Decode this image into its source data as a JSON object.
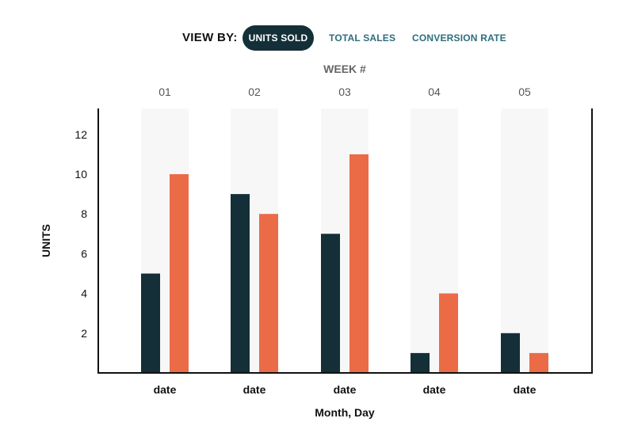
{
  "view_by": {
    "label": "VIEW BY:",
    "options": [
      "UNITS SOLD",
      "TOTAL SALES",
      "CONVERSION RATE"
    ],
    "selected": "UNITS SOLD"
  },
  "colors": {
    "series_dark": "#142f38",
    "series_orange": "#eb6b47",
    "active_pill": "#142f38",
    "link": "#2d6e7e",
    "band": "#f7f7f7"
  },
  "chart_data": {
    "type": "bar",
    "top_axis_label": "WEEK #",
    "top_categories": [
      "01",
      "02",
      "03",
      "04",
      "05"
    ],
    "categories": [
      "date",
      "date",
      "date",
      "date",
      "date"
    ],
    "series": [
      {
        "values": [
          5,
          9,
          7,
          1,
          2
        ]
      },
      {
        "values": [
          10,
          8,
          11,
          4,
          1
        ]
      }
    ],
    "xlabel": "Month, Day",
    "ylabel": "UNITS",
    "yticks": [
      2,
      4,
      6,
      8,
      10,
      12
    ],
    "ylim": [
      0,
      13.3
    ],
    "grid": false
  }
}
